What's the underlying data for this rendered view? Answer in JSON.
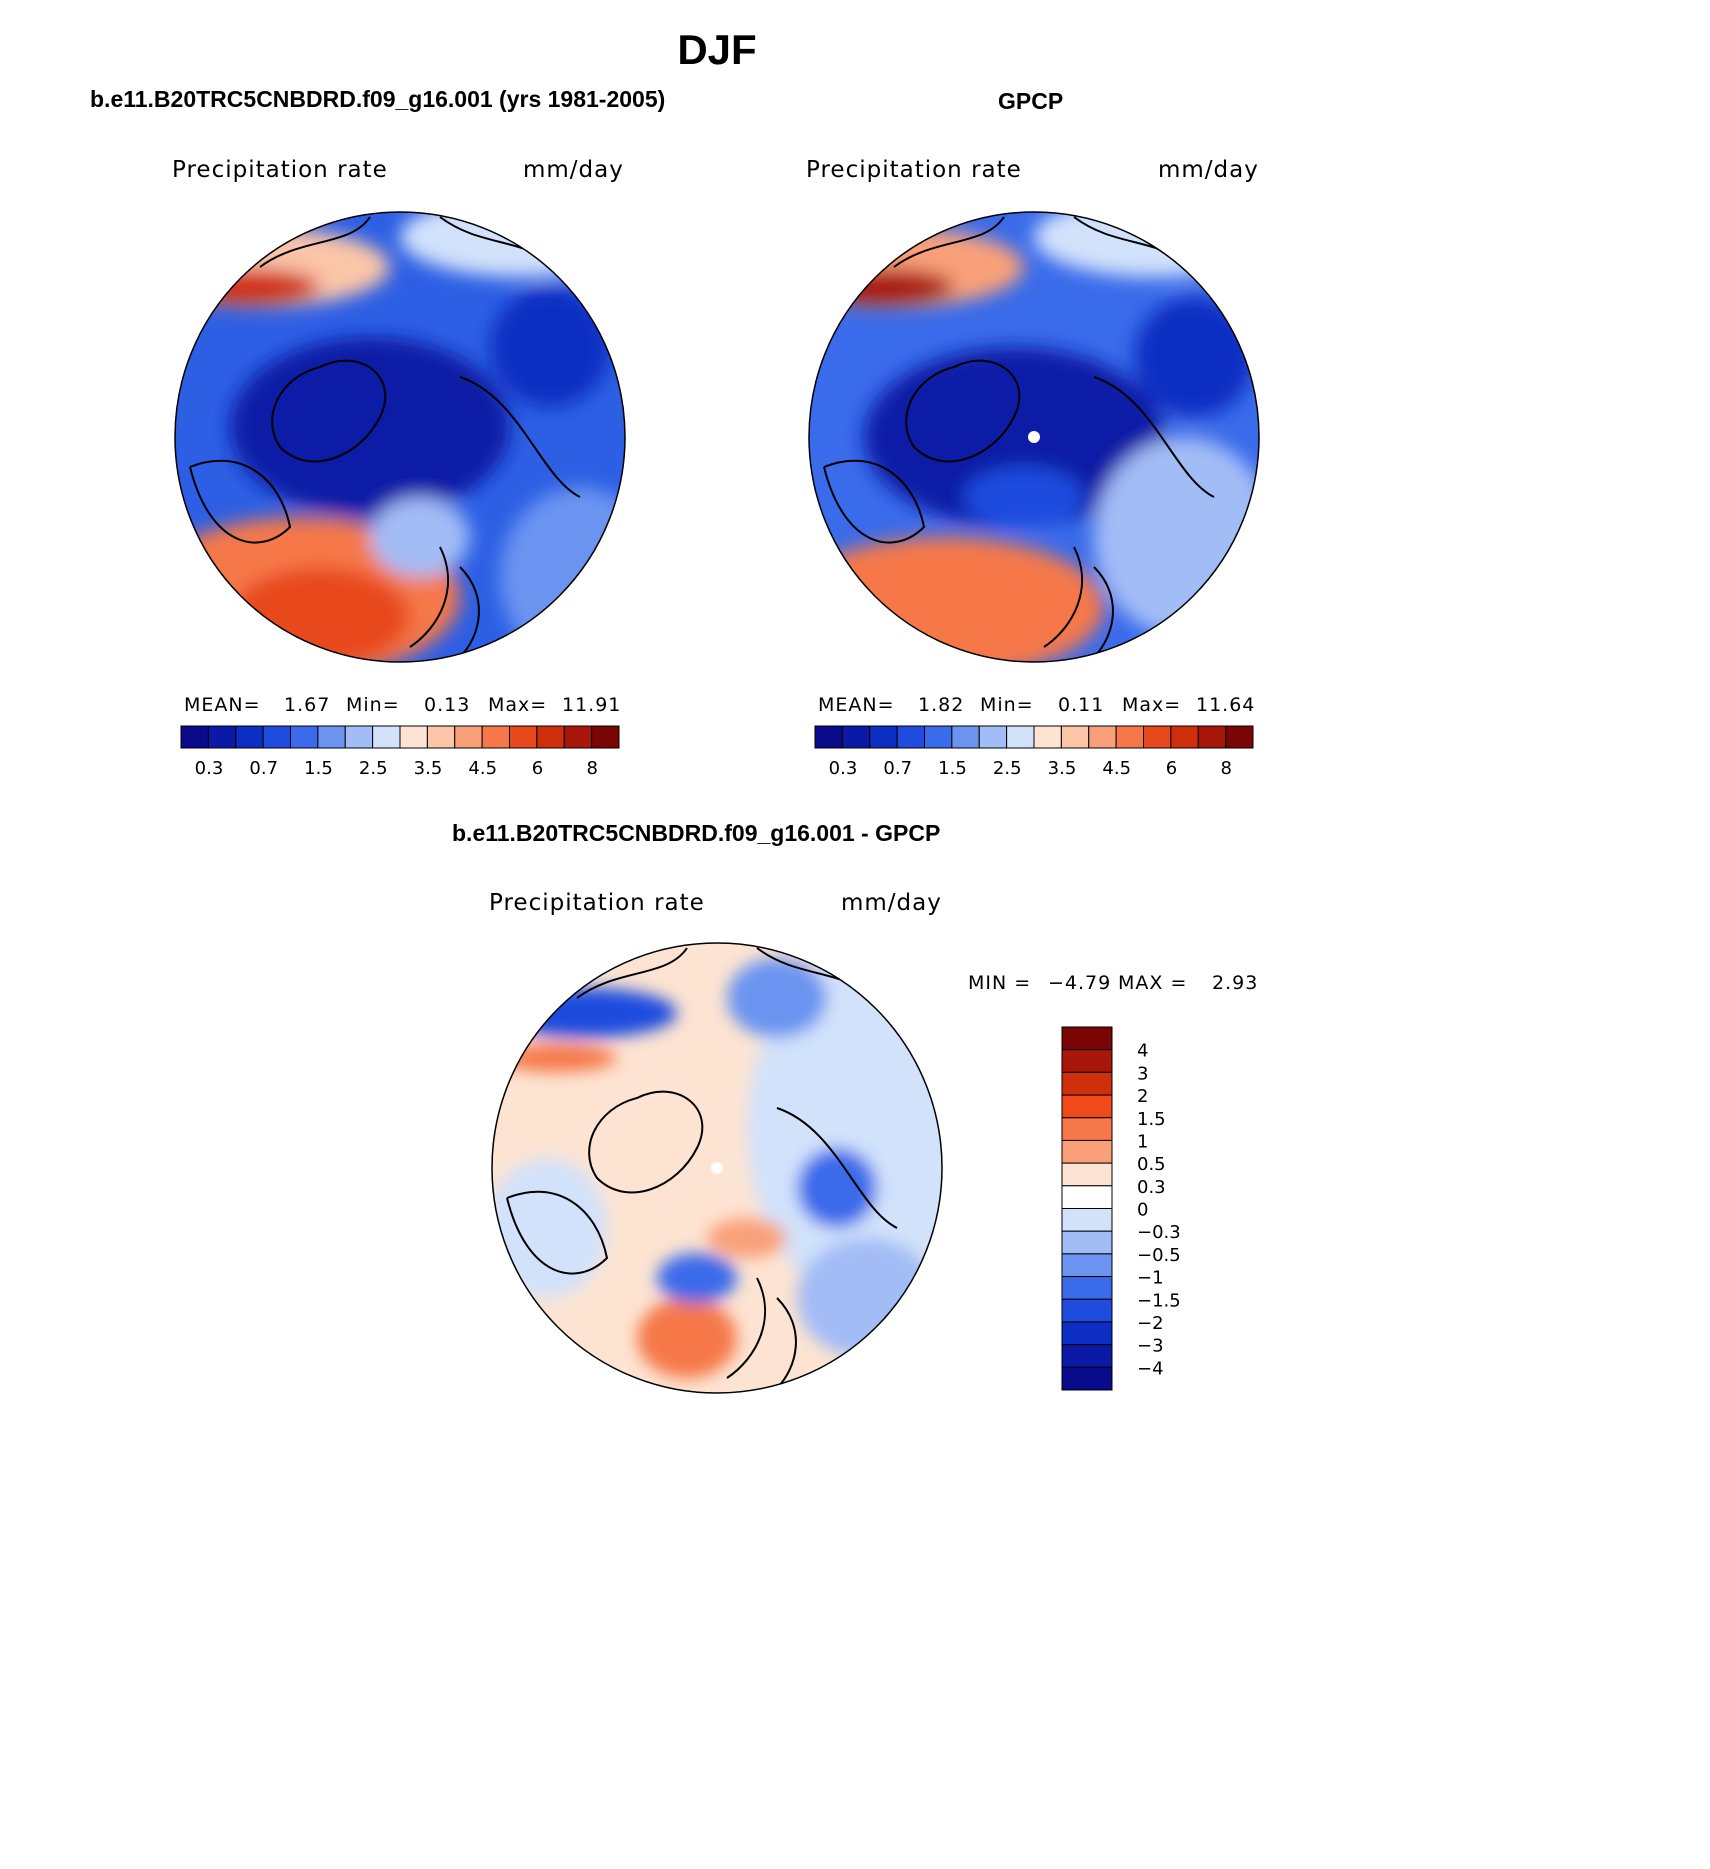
{
  "page": {
    "season": "DJF"
  },
  "panels": {
    "model": {
      "title": "b.e11.B20TRC5CNBDRD.f09_g16.001 (yrs 1981-2005)",
      "variable": "Precipitation rate",
      "units": "mm/day",
      "stats": {
        "mean_label": "MEAN=",
        "mean": "1.67",
        "min_label": "Min=",
        "min": "0.13",
        "max_label": "Max=",
        "max": "11.91"
      }
    },
    "obs": {
      "title": "GPCP",
      "variable": "Precipitation rate",
      "units": "mm/day",
      "stats": {
        "mean_label": "MEAN=",
        "mean": "1.82",
        "min_label": "Min=",
        "min": "0.11",
        "max_label": "Max=",
        "max": "11.64"
      }
    },
    "diff": {
      "title": "b.e11.B20TRC5CNBDRD.f09_g16.001 - GPCP",
      "variable": "Precipitation rate",
      "units": "mm/day",
      "stats": {
        "min_label": "MIN =",
        "min": "−4.79",
        "max_label": "MAX =",
        "max": "2.93"
      }
    }
  },
  "colorbars": {
    "abs": {
      "colors": [
        "#0a0b8c",
        "#0b1aa6",
        "#0d2ec2",
        "#1f4bde",
        "#3a6bea",
        "#6a94f0",
        "#a2bcf6",
        "#d2e2fb",
        "#fde4d2",
        "#fbc5a8",
        "#f9a079",
        "#f6784a",
        "#e8491c",
        "#d02f0c",
        "#a8170a",
        "#7a0505"
      ],
      "labels": [
        "0.3",
        "0.7",
        "1.5",
        "2.5",
        "3.5",
        "4.5",
        "6",
        "8"
      ]
    },
    "diff": {
      "colors": [
        "#7a0505",
        "#a8170a",
        "#d02f0c",
        "#f04a1a",
        "#f6784a",
        "#f9a079",
        "#fde4d2",
        "#ffffff",
        "#d2e2fb",
        "#a2bcf6",
        "#6a94f0",
        "#3a6bea",
        "#1f4bde",
        "#0d2ec2",
        "#0b1aa6",
        "#0a0b8c"
      ],
      "labels": [
        "4",
        "3",
        "2",
        "1.5",
        "1",
        "0.5",
        "0.3",
        "0",
        "−0.3",
        "−0.5",
        "−1",
        "−1.5",
        "−2",
        "−3",
        "−4"
      ]
    }
  }
}
